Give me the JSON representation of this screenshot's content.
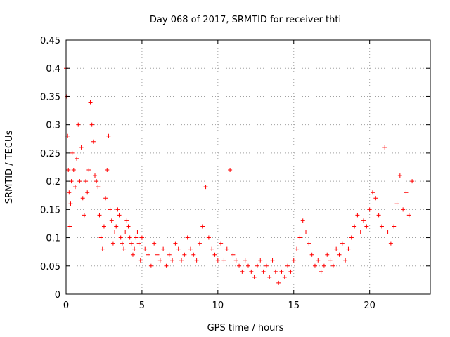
{
  "chart_data": {
    "type": "scatter",
    "title": "Day 068 of 2017, SRMTID for receiver thti",
    "xlabel": "GPS time / hours",
    "ylabel": "SRMTID / TECUs",
    "xlim": [
      0,
      24
    ],
    "ylim": [
      0,
      0.45
    ],
    "xticks": [
      0,
      5,
      10,
      15,
      20
    ],
    "xtick_labels": [
      "0",
      "5",
      "10",
      "15",
      "20"
    ],
    "yticks": [
      0,
      0.05,
      0.1,
      0.15,
      0.2,
      0.25,
      0.3,
      0.35,
      0.4,
      0.45
    ],
    "ytick_labels": [
      "0",
      "0.05",
      "0.1",
      "0.15",
      "0.2",
      "0.25",
      "0.3",
      "0.35",
      "0.4",
      "0.45"
    ],
    "grid": true,
    "marker": "+",
    "color": "#ff0000",
    "series": [
      {
        "name": "SRMTID",
        "x": [
          0.0,
          0.05,
          0.1,
          0.15,
          0.2,
          0.25,
          0.3,
          0.35,
          0.4,
          0.5,
          0.6,
          0.7,
          0.8,
          0.9,
          1.0,
          1.1,
          1.2,
          1.3,
          1.4,
          1.5,
          1.6,
          1.7,
          1.8,
          1.9,
          2.0,
          2.1,
          2.2,
          2.3,
          2.4,
          2.5,
          2.6,
          2.7,
          2.8,
          2.9,
          3.0,
          3.1,
          3.2,
          3.3,
          3.4,
          3.5,
          3.6,
          3.7,
          3.8,
          3.9,
          4.0,
          4.1,
          4.2,
          4.3,
          4.4,
          4.5,
          4.6,
          4.7,
          4.8,
          4.9,
          5.0,
          5.2,
          5.4,
          5.6,
          5.8,
          6.0,
          6.2,
          6.4,
          6.6,
          6.8,
          7.0,
          7.2,
          7.4,
          7.6,
          7.8,
          8.0,
          8.2,
          8.4,
          8.6,
          8.8,
          9.0,
          9.2,
          9.4,
          9.6,
          9.8,
          10.0,
          10.2,
          10.4,
          10.6,
          10.8,
          11.0,
          11.2,
          11.4,
          11.6,
          11.8,
          12.0,
          12.2,
          12.4,
          12.6,
          12.8,
          13.0,
          13.2,
          13.4,
          13.6,
          13.8,
          14.0,
          14.2,
          14.4,
          14.6,
          14.8,
          15.0,
          15.2,
          15.4,
          15.6,
          15.8,
          16.0,
          16.2,
          16.4,
          16.6,
          16.8,
          17.0,
          17.2,
          17.4,
          17.6,
          17.8,
          18.0,
          18.2,
          18.4,
          18.6,
          18.8,
          19.0,
          19.2,
          19.4,
          19.6,
          19.8,
          20.0,
          20.2,
          20.4,
          20.6,
          20.8,
          21.0,
          21.2,
          21.4,
          21.6,
          21.8,
          22.0,
          22.2,
          22.4,
          22.6,
          22.8
        ],
        "y": [
          0.4,
          0.35,
          0.28,
          0.22,
          0.18,
          0.12,
          0.16,
          0.2,
          0.25,
          0.22,
          0.19,
          0.24,
          0.3,
          0.2,
          0.26,
          0.17,
          0.14,
          0.2,
          0.18,
          0.22,
          0.34,
          0.3,
          0.27,
          0.21,
          0.2,
          0.19,
          0.14,
          0.1,
          0.08,
          0.12,
          0.17,
          0.22,
          0.28,
          0.15,
          0.13,
          0.09,
          0.11,
          0.12,
          0.15,
          0.14,
          0.1,
          0.09,
          0.08,
          0.11,
          0.13,
          0.12,
          0.1,
          0.09,
          0.07,
          0.08,
          0.1,
          0.11,
          0.09,
          0.06,
          0.1,
          0.08,
          0.07,
          0.05,
          0.09,
          0.07,
          0.06,
          0.08,
          0.05,
          0.07,
          0.06,
          0.09,
          0.08,
          0.06,
          0.07,
          0.1,
          0.08,
          0.07,
          0.06,
          0.09,
          0.12,
          0.19,
          0.1,
          0.08,
          0.07,
          0.06,
          0.09,
          0.06,
          0.08,
          0.22,
          0.07,
          0.06,
          0.05,
          0.04,
          0.06,
          0.05,
          0.04,
          0.03,
          0.05,
          0.06,
          0.04,
          0.05,
          0.03,
          0.06,
          0.04,
          0.02,
          0.04,
          0.03,
          0.05,
          0.04,
          0.06,
          0.08,
          0.1,
          0.13,
          0.11,
          0.09,
          0.07,
          0.05,
          0.06,
          0.04,
          0.05,
          0.07,
          0.06,
          0.05,
          0.08,
          0.07,
          0.09,
          0.06,
          0.08,
          0.1,
          0.12,
          0.14,
          0.11,
          0.13,
          0.12,
          0.15,
          0.18,
          0.17,
          0.14,
          0.12,
          0.26,
          0.11,
          0.09,
          0.12,
          0.16,
          0.21,
          0.15,
          0.18,
          0.14,
          0.2
        ]
      }
    ]
  }
}
